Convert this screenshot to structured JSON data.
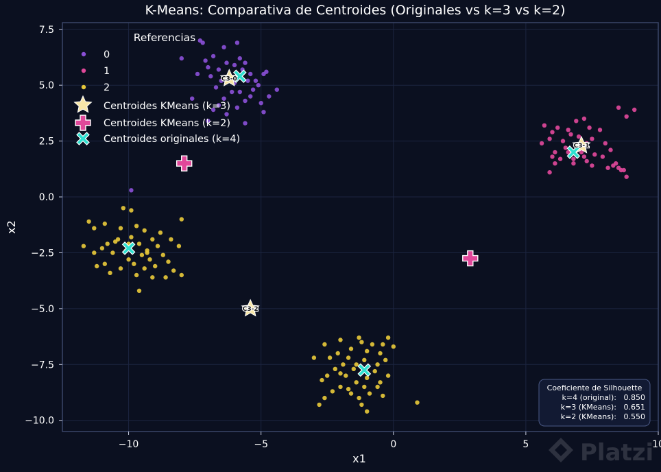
{
  "chart_data": {
    "type": "scatter",
    "title": "K-Means: Comparativa de Centroides (Originales vs k=3 vs k=2)",
    "xlabel": "x1",
    "ylabel": "x2",
    "xlim": [
      -12.5,
      10
    ],
    "ylim": [
      -10.5,
      7.8
    ],
    "xticks": [
      -10,
      -5,
      0,
      5,
      10
    ],
    "xtick_labels": [
      "−10",
      "−5",
      "0",
      "5",
      "10"
    ],
    "yticks": [
      -10,
      -7.5,
      -5,
      -2.5,
      0,
      2.5,
      5,
      7.5
    ],
    "ytick_labels": [
      "−10.0",
      "−7.5",
      "−5.0",
      "−2.5",
      "0.0",
      "2.5",
      "5.0",
      "7.5"
    ],
    "grid": true,
    "legend": {
      "title": "Referencias",
      "placement": "top-left",
      "entries": [
        "0",
        "1",
        "2",
        "Centroides KMeans (k=3)",
        "Centroides KMeans (k=2)",
        "Centroides originales (k=4)"
      ]
    },
    "colors": {
      "background": "#0b1020",
      "axes_frame": "#3a4668",
      "grid": "#1c2540",
      "cluster_0": "#8a4fd6",
      "cluster_1": "#e0489a",
      "cluster_2": "#e6c73a",
      "star": "#f7e6a8",
      "plus": "#e0489a",
      "cross": "#2ee0d0"
    },
    "series": [
      {
        "name": "0",
        "points": [
          [
            -7.3,
            7.0
          ],
          [
            -7.2,
            6.9
          ],
          [
            -6.4,
            6.7
          ],
          [
            -5.9,
            6.9
          ],
          [
            -6.8,
            6.3
          ],
          [
            -7.1,
            6.1
          ],
          [
            -5.8,
            6.2
          ],
          [
            -5.6,
            6.0
          ],
          [
            -6.3,
            6.0
          ],
          [
            -7.0,
            5.8
          ],
          [
            -6.6,
            5.7
          ],
          [
            -6.0,
            5.9
          ],
          [
            -5.7,
            5.7
          ],
          [
            -7.4,
            5.5
          ],
          [
            -6.9,
            5.4
          ],
          [
            -6.2,
            5.5
          ],
          [
            -5.4,
            5.5
          ],
          [
            -4.9,
            5.5
          ],
          [
            -4.8,
            5.6
          ],
          [
            -6.5,
            5.2
          ],
          [
            -5.5,
            5.2
          ],
          [
            -5.2,
            5.2
          ],
          [
            -6.0,
            5.1
          ],
          [
            -5.3,
            4.8
          ],
          [
            -4.4,
            4.8
          ],
          [
            -6.7,
            4.9
          ],
          [
            -6.1,
            4.7
          ],
          [
            -5.8,
            4.7
          ],
          [
            -4.7,
            4.5
          ],
          [
            -7.6,
            4.4
          ],
          [
            -6.4,
            4.4
          ],
          [
            -5.6,
            4.3
          ],
          [
            -5.0,
            4.2
          ],
          [
            -5.9,
            4.0
          ],
          [
            -6.8,
            3.9
          ],
          [
            -4.9,
            3.8
          ],
          [
            -6.3,
            3.7
          ],
          [
            -7.0,
            3.4
          ],
          [
            -5.6,
            3.3
          ],
          [
            -8.0,
            6.2
          ],
          [
            -9.9,
            0.3
          ],
          [
            -6.1,
            5.3
          ],
          [
            -5.1,
            5.0
          ],
          [
            -6.6,
            4.1
          ],
          [
            -5.4,
            4.5
          ]
        ]
      },
      {
        "name": "1",
        "points": [
          [
            9.1,
            3.9
          ],
          [
            8.5,
            4.0
          ],
          [
            8.8,
            3.6
          ],
          [
            7.2,
            3.5
          ],
          [
            6.9,
            3.4
          ],
          [
            5.7,
            3.2
          ],
          [
            6.2,
            3.1
          ],
          [
            6.6,
            3.0
          ],
          [
            7.4,
            3.1
          ],
          [
            7.8,
            3.0
          ],
          [
            6.0,
            2.9
          ],
          [
            6.7,
            2.8
          ],
          [
            7.0,
            2.7
          ],
          [
            5.9,
            2.6
          ],
          [
            6.4,
            2.5
          ],
          [
            7.5,
            2.6
          ],
          [
            5.6,
            2.4
          ],
          [
            6.9,
            2.3
          ],
          [
            7.3,
            2.4
          ],
          [
            8.2,
            2.1
          ],
          [
            6.1,
            2.0
          ],
          [
            6.6,
            2.0
          ],
          [
            7.1,
            2.0
          ],
          [
            7.6,
            1.9
          ],
          [
            6.0,
            1.8
          ],
          [
            6.3,
            1.7
          ],
          [
            6.8,
            1.7
          ],
          [
            7.3,
            1.6
          ],
          [
            7.9,
            1.8
          ],
          [
            8.4,
            1.5
          ],
          [
            6.1,
            1.5
          ],
          [
            6.8,
            1.5
          ],
          [
            7.5,
            1.4
          ],
          [
            8.1,
            1.3
          ],
          [
            8.5,
            1.3
          ],
          [
            8.7,
            1.2
          ],
          [
            5.9,
            1.1
          ],
          [
            8.6,
            1.2
          ],
          [
            8.3,
            1.4
          ],
          [
            7.2,
            1.8
          ],
          [
            6.5,
            2.2
          ],
          [
            8.0,
            2.4
          ],
          [
            6.9,
            2.1
          ],
          [
            8.8,
            0.9
          ]
        ]
      },
      {
        "name": "2",
        "points": [
          [
            -10.2,
            -0.5
          ],
          [
            -9.9,
            -0.6
          ],
          [
            -11.5,
            -1.1
          ],
          [
            -10.9,
            -1.2
          ],
          [
            -9.7,
            -1.3
          ],
          [
            -10.3,
            -1.4
          ],
          [
            -11.3,
            -1.4
          ],
          [
            -9.4,
            -1.5
          ],
          [
            -8.8,
            -1.6
          ],
          [
            -9.9,
            -1.8
          ],
          [
            -10.4,
            -1.9
          ],
          [
            -9.1,
            -1.9
          ],
          [
            -8.4,
            -1.9
          ],
          [
            -10.8,
            -2.1
          ],
          [
            -9.6,
            -2.1
          ],
          [
            -8.9,
            -2.2
          ],
          [
            -11.0,
            -2.3
          ],
          [
            -10.1,
            -2.4
          ],
          [
            -9.3,
            -2.4
          ],
          [
            -8.1,
            -2.2
          ],
          [
            -11.3,
            -2.5
          ],
          [
            -10.6,
            -2.5
          ],
          [
            -9.5,
            -2.6
          ],
          [
            -8.7,
            -2.6
          ],
          [
            -10.0,
            -2.8
          ],
          [
            -9.2,
            -2.8
          ],
          [
            -8.5,
            -2.9
          ],
          [
            -10.9,
            -3.0
          ],
          [
            -9.8,
            -3.0
          ],
          [
            -9.0,
            -3.1
          ],
          [
            -11.2,
            -3.1
          ],
          [
            -10.3,
            -3.2
          ],
          [
            -9.4,
            -3.2
          ],
          [
            -8.3,
            -3.3
          ],
          [
            -10.7,
            -3.4
          ],
          [
            -9.7,
            -3.5
          ],
          [
            -8.0,
            -3.5
          ],
          [
            -9.1,
            -3.6
          ],
          [
            -8.6,
            -3.6
          ],
          [
            -8.0,
            -1.0
          ],
          [
            -9.6,
            -4.2
          ],
          [
            -11.7,
            -2.2
          ],
          [
            -10.0,
            -2.1
          ],
          [
            -9.3,
            -2.5
          ],
          [
            -10.5,
            -2.0
          ],
          [
            -2.0,
            -6.4
          ],
          [
            -1.3,
            -6.3
          ],
          [
            -0.2,
            -6.3
          ],
          [
            -2.6,
            -6.6
          ],
          [
            -1.2,
            -6.5
          ],
          [
            -0.8,
            -6.6
          ],
          [
            -0.4,
            -6.6
          ],
          [
            0.0,
            -6.7
          ],
          [
            -1.6,
            -6.8
          ],
          [
            -1.0,
            -6.9
          ],
          [
            -2.1,
            -7.0
          ],
          [
            -0.5,
            -7.0
          ],
          [
            -2.4,
            -7.2
          ],
          [
            -1.7,
            -7.2
          ],
          [
            -1.1,
            -7.3
          ],
          [
            -0.3,
            -7.3
          ],
          [
            -3.0,
            -7.2
          ],
          [
            -1.9,
            -7.5
          ],
          [
            -1.4,
            -7.5
          ],
          [
            -0.6,
            -7.5
          ],
          [
            -2.2,
            -7.7
          ],
          [
            -1.5,
            -7.7
          ],
          [
            -0.7,
            -7.8
          ],
          [
            -2.5,
            -8.0
          ],
          [
            -1.8,
            -8.0
          ],
          [
            -1.0,
            -8.1
          ],
          [
            -0.2,
            -8.0
          ],
          [
            -2.7,
            -8.2
          ],
          [
            -1.4,
            -8.3
          ],
          [
            -0.5,
            -8.3
          ],
          [
            -2.0,
            -8.5
          ],
          [
            -1.1,
            -8.5
          ],
          [
            -0.6,
            -8.5
          ],
          [
            -2.3,
            -8.7
          ],
          [
            -1.6,
            -8.8
          ],
          [
            -0.9,
            -8.8
          ],
          [
            -2.6,
            -9.0
          ],
          [
            -1.3,
            -9.0
          ],
          [
            -0.4,
            -8.9
          ],
          [
            0.9,
            -9.2
          ],
          [
            -2.8,
            -9.3
          ],
          [
            -1.2,
            -9.3
          ],
          [
            -1.0,
            -9.6
          ],
          [
            -2.0,
            -7.9
          ],
          [
            -1.7,
            -8.6
          ]
        ]
      }
    ],
    "centroids_kmeans_k3": [
      {
        "label": "C3-0",
        "x": -6.2,
        "y": 5.3
      },
      {
        "label": "C3-1",
        "x": 7.1,
        "y": 2.3
      },
      {
        "label": "C3-2",
        "x": -5.4,
        "y": -5.0
      }
    ],
    "centroids_kmeans_k2": [
      {
        "x": -7.9,
        "y": 1.5
      },
      {
        "x": 2.9,
        "y": -2.75
      }
    ],
    "centroids_original_k4": [
      {
        "x": -5.8,
        "y": 5.4
      },
      {
        "x": 6.8,
        "y": 2.0
      },
      {
        "x": -10.0,
        "y": -2.3
      },
      {
        "x": -1.1,
        "y": -7.75
      }
    ]
  },
  "silhouette": {
    "title": "Coeficiente de Silhouette",
    "rows": [
      {
        "label": "k=4 (original):",
        "value": "0.850"
      },
      {
        "label": "k=3 (KMeans):",
        "value": "0.651"
      },
      {
        "label": "k=2 (KMeans):",
        "value": "0.550"
      }
    ]
  },
  "watermark": {
    "text": "Platzi"
  }
}
